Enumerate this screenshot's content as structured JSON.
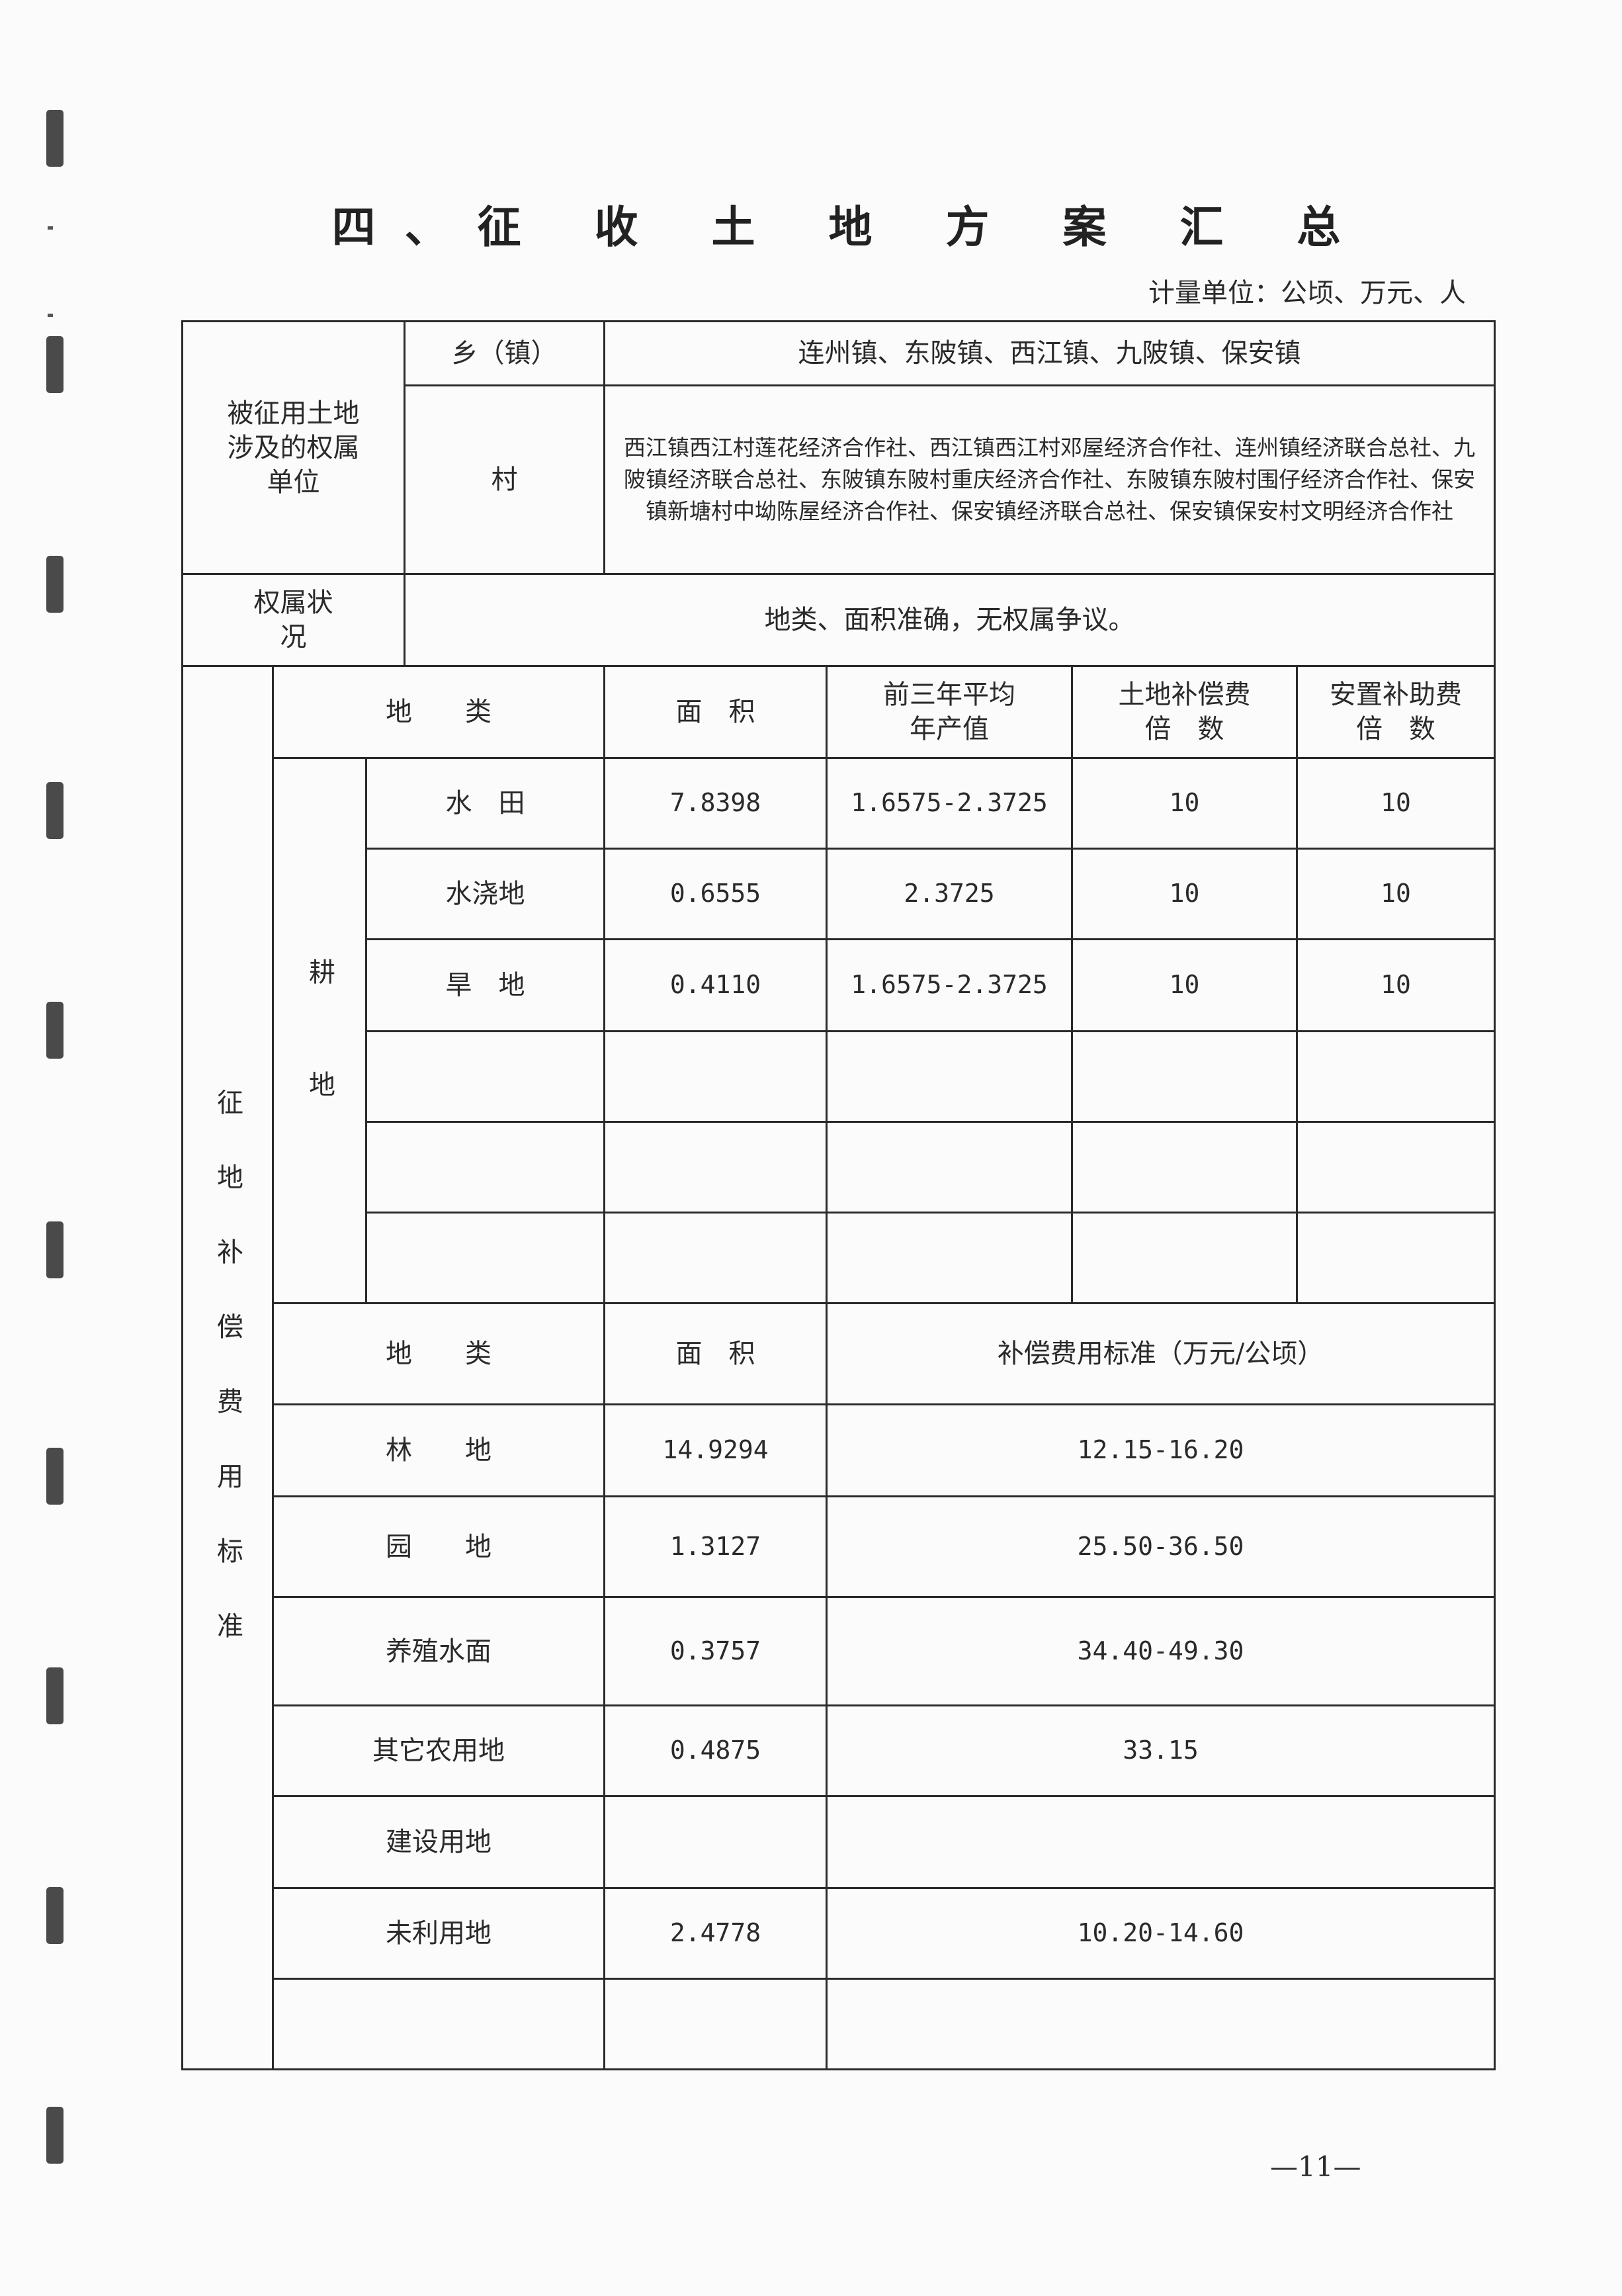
{
  "title": "四、征 收 土 地 方 案 汇 总",
  "unit": "计量单位：公顷、万元、人",
  "ownership": {
    "label": "被征用土地涉及的权属单位",
    "township_label": "乡（镇）",
    "township_value": "连州镇、东陂镇、西江镇、九陂镇、保安镇",
    "village_label": "村",
    "village_value": "西江镇西江村莲花经济合作社、西江镇西江村邓屋经济合作社、连州镇经济联合总社、九陂镇经济联合总社、东陂镇东陂村重庆经济合作社、东陂镇东陂村围仔经济合作社、保安镇新塘村中坳陈屋经济合作社、保安镇经济联合总社、保安镇保安村文明经济合作社"
  },
  "status": {
    "label": "权属状况",
    "value": "地类、面积准确，无权属争议。"
  },
  "compensation_label": "征地补偿费用标准",
  "cultivated": {
    "group_label": "耕地",
    "headers": [
      "地　　类",
      "面　积",
      "前三年平均年产值",
      "土地补偿费倍　数",
      "安置补助费倍　数"
    ],
    "rows": [
      {
        "type": "水　田",
        "area": "7.8398",
        "avg_output": "1.6575-2.3725",
        "land_multiple": "10",
        "resettle_multiple": "10"
      },
      {
        "type": "水浇地",
        "area": "0.6555",
        "avg_output": "2.3725",
        "land_multiple": "10",
        "resettle_multiple": "10"
      },
      {
        "type": "旱　地",
        "area": "0.4110",
        "avg_output": "1.6575-2.3725",
        "land_multiple": "10",
        "resettle_multiple": "10"
      },
      {
        "type": "",
        "area": "",
        "avg_output": "",
        "land_multiple": "",
        "resettle_multiple": ""
      },
      {
        "type": "",
        "area": "",
        "avg_output": "",
        "land_multiple": "",
        "resettle_multiple": ""
      },
      {
        "type": "",
        "area": "",
        "avg_output": "",
        "land_multiple": "",
        "resettle_multiple": ""
      }
    ]
  },
  "other": {
    "headers": [
      "地　　类",
      "面　积",
      "补偿费用标准（万元/公顷）"
    ],
    "rows": [
      {
        "type": "林　　地",
        "area": "14.9294",
        "standard": "12.15-16.20"
      },
      {
        "type": "园　　地",
        "area": "1.3127",
        "standard": "25.50-36.50"
      },
      {
        "type": "养殖水面",
        "area": "0.3757",
        "standard": "34.40-49.30"
      },
      {
        "type": "其它农用地",
        "area": "0.4875",
        "standard": "33.15"
      },
      {
        "type": "建设用地",
        "area": "",
        "standard": ""
      },
      {
        "type": "未利用地",
        "area": "2.4778",
        "standard": "10.20-14.60"
      },
      {
        "type": "",
        "area": "",
        "standard": ""
      }
    ]
  },
  "page_number": "—11—"
}
